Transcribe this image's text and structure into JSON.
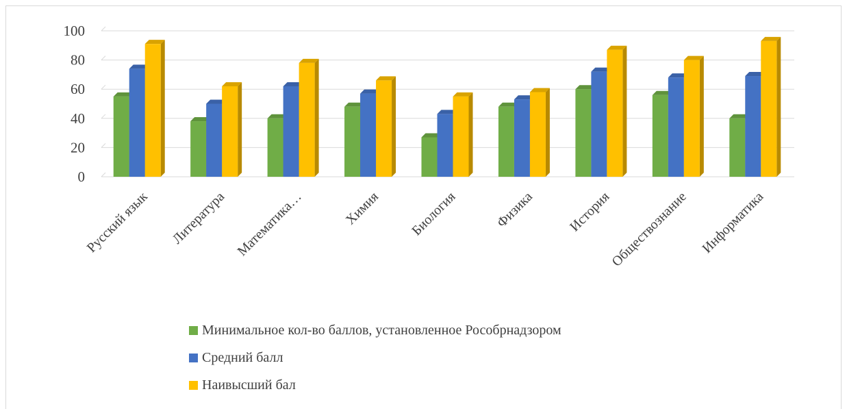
{
  "chart_data": {
    "type": "bar",
    "ylim": [
      0,
      100
    ],
    "yticks": [
      0,
      20,
      40,
      60,
      80,
      100
    ],
    "grid": true,
    "legend_position": "bottom",
    "categories": [
      "Русский язык",
      "Литература",
      "Математика…",
      "Химия",
      "Биология",
      "Физика",
      "История",
      "Обществознание",
      "Информатика"
    ],
    "series": [
      {
        "name": "Минимальное кол-во баллов, установленное Рособрнадзором",
        "color": "#70ad47",
        "values": [
          55,
          38,
          40,
          48,
          27,
          48,
          60,
          56,
          40
        ]
      },
      {
        "name": "Средний балл",
        "color": "#4472c4",
        "values": [
          74,
          50,
          62,
          57,
          43,
          53,
          72,
          68,
          69
        ]
      },
      {
        "name": "Наивысший бал",
        "color": "#ffc000",
        "values": [
          91,
          62,
          78,
          66,
          55,
          58,
          87,
          80,
          93
        ]
      }
    ]
  }
}
